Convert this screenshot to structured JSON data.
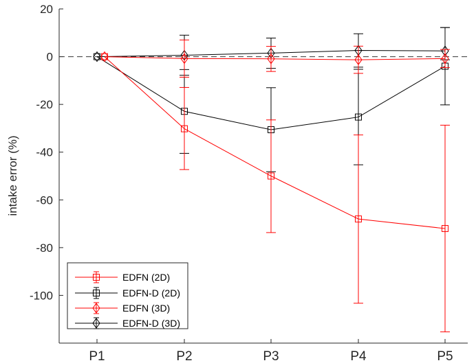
{
  "chart_data": {
    "type": "line",
    "title": "",
    "xlabel": "",
    "ylabel": "intake error (%)",
    "categories": [
      "P1",
      "P2",
      "P3",
      "P4",
      "P5"
    ],
    "ylim": [
      -120,
      20
    ],
    "yticks": [
      "20",
      "0",
      "-20",
      "-40",
      "-60",
      "-80",
      "-100"
    ],
    "ytick_values": [
      20,
      0,
      -20,
      -40,
      -60,
      -80,
      -100
    ],
    "reference_line": {
      "y": 0,
      "style": "dashed"
    },
    "grid": false,
    "legend_position": "bottom-left",
    "series": [
      {
        "name": "EDFN (2D)",
        "color": "#ff0000",
        "marker": "square",
        "values": [
          0,
          -30.2,
          -50.0,
          -68.0,
          -72.0
        ],
        "lower": [
          0,
          -47.3,
          -73.7,
          -103.3,
          -115.3
        ],
        "upper": [
          0,
          -12.9,
          -26.5,
          -32.8,
          -28.7
        ]
      },
      {
        "name": "EDFN-D (2D)",
        "color": "#000000",
        "marker": "square",
        "values": [
          0,
          -22.9,
          -30.6,
          -25.3,
          -4.0
        ],
        "lower": [
          0,
          -40.5,
          -48.2,
          -45.3,
          -20.2
        ],
        "upper": [
          0,
          -5.4,
          -13.0,
          -5.3,
          12.2
        ]
      },
      {
        "name": "EDFN (3D)",
        "color": "#ff0000",
        "marker": "diamond",
        "values": [
          0,
          -0.8,
          -0.9,
          -1.3,
          -0.8
        ],
        "lower": [
          0,
          -8.6,
          -6.2,
          -7.0,
          -4.6
        ],
        "upper": [
          0,
          7.0,
          4.3,
          4.4,
          3.0
        ]
      },
      {
        "name": "EDFN-D (3D)",
        "color": "#000000",
        "marker": "diamond",
        "values": [
          0,
          0.6,
          1.5,
          2.6,
          2.4
        ],
        "lower": [
          0,
          -7.8,
          -4.9,
          -4.4,
          -1.3
        ],
        "upper": [
          0,
          9.0,
          7.8,
          9.6,
          12.2
        ]
      }
    ]
  }
}
